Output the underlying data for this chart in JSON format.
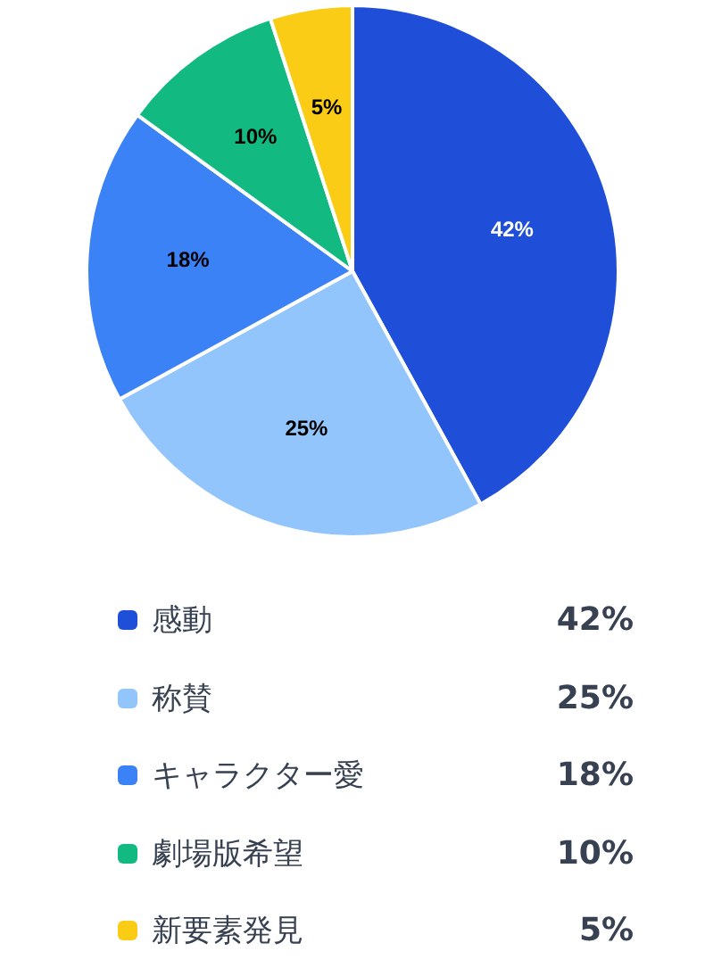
{
  "chart_data": {
    "type": "pie",
    "categories": [
      "感動",
      "称賛",
      "キャラクター愛",
      "劇場版希望",
      "新要素発見"
    ],
    "values": [
      42,
      25,
      18,
      10,
      5
    ],
    "colors": [
      "#1f4fd8",
      "#93c5fd",
      "#3b82f6",
      "#12b981",
      "#facc15"
    ],
    "value_labels": [
      "42%",
      "25%",
      "18%",
      "10%",
      "5%"
    ],
    "data_labels": true,
    "legend": "bottom"
  }
}
